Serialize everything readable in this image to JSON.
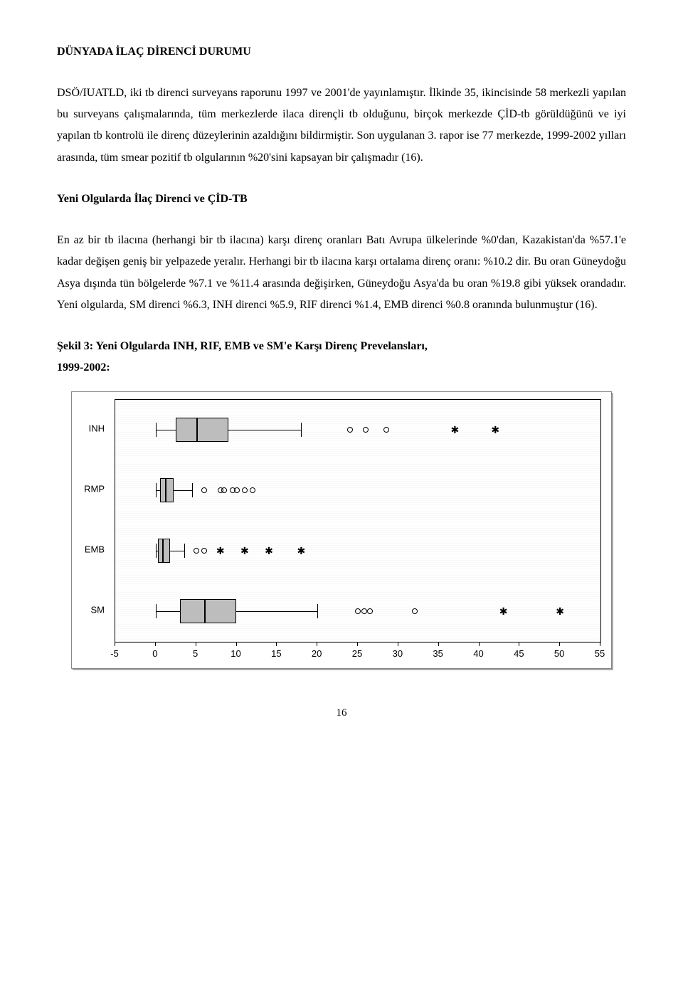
{
  "section_title": "DÜNYADA İLAÇ DİRENCİ DURUMU",
  "para1": "DSÖ/IUATLD, iki tb direnci surveyans raporunu 1997 ve 2001'de yayınlamıştır. İlkinde 35, ikincisinde 58 merkezli yapılan bu surveyans çalışmalarında, tüm merkezlerde ilaca dirençli tb olduğunu, birçok merkezde ÇİD-tb görüldüğünü ve iyi yapılan tb kontrolü ile direnç düzeylerinin azaldığını bildirmiştir. Son uygulanan 3. rapor ise 77 merkezde, 1999-2002 yılları arasında, tüm smear pozitif tb olgularının %20'sini kapsayan bir çalışmadır (16).",
  "sub_title": "Yeni Olgularda İlaç Direnci ve ÇİD-TB",
  "para2": "En az bir tb ilacına (herhangi bir tb ilacına) karşı direnç oranları Batı Avrupa ülkelerinde %0'dan, Kazakistan'da %57.1'e kadar değişen geniş bir yelpazede yeralır. Herhangi bir tb ilacına karşı ortalama direnç oranı: %10.2 dir. Bu oran Güneydoğu Asya dışında tün bölgelerde %7.1 ve %11.4 arasında değişirken, Güneydoğu Asya'da bu oran %19.8 gibi yüksek orandadır. Yeni olgularda, SM direnci %6.3, INH direnci %5.9, RIF direnci %1.4, EMB direnci %0.8 oranında bulunmuştur (16).",
  "figure_caption_line1": "Şekil 3: Yeni Olgularda INH, RIF, EMB ve SM'e Karşı Direnç Prevelansları,",
  "figure_caption_line2": "1999-2002:",
  "page_number": "16",
  "chart": {
    "type": "boxplot-horizontal",
    "background_color": "#ffffff",
    "box_fill": "#bdbdbd",
    "border_color": "#000000",
    "x_min": -5,
    "x_max": 55,
    "x_ticks": [
      -5,
      0,
      5,
      10,
      15,
      20,
      25,
      30,
      35,
      40,
      45,
      50,
      55
    ],
    "categories": [
      {
        "label": "INH",
        "whisker_low": 0,
        "q1": 2.5,
        "median": 5,
        "q3": 9,
        "whisker_high": 18,
        "outliers_circle": [
          24,
          26,
          28.5
        ],
        "outliers_star": [
          37,
          42
        ]
      },
      {
        "label": "RMP",
        "whisker_low": 0,
        "q1": 0.5,
        "median": 1.2,
        "q3": 2.2,
        "whisker_high": 4.5,
        "outliers_circle": [
          6,
          8,
          8.5,
          9.5,
          10,
          11,
          12
        ],
        "outliers_star": []
      },
      {
        "label": "EMB",
        "whisker_low": 0,
        "q1": 0.3,
        "median": 0.8,
        "q3": 1.8,
        "whisker_high": 3.5,
        "outliers_circle": [
          5,
          6
        ],
        "outliers_star": [
          8,
          11,
          14,
          18
        ]
      },
      {
        "label": "SM",
        "whisker_low": 0,
        "q1": 3,
        "median": 6,
        "q3": 10,
        "whisker_high": 20,
        "outliers_circle": [
          25,
          25.8,
          26.5,
          32
        ],
        "outliers_star": [
          43,
          50
        ]
      }
    ],
    "label_fontsize": 13
  }
}
